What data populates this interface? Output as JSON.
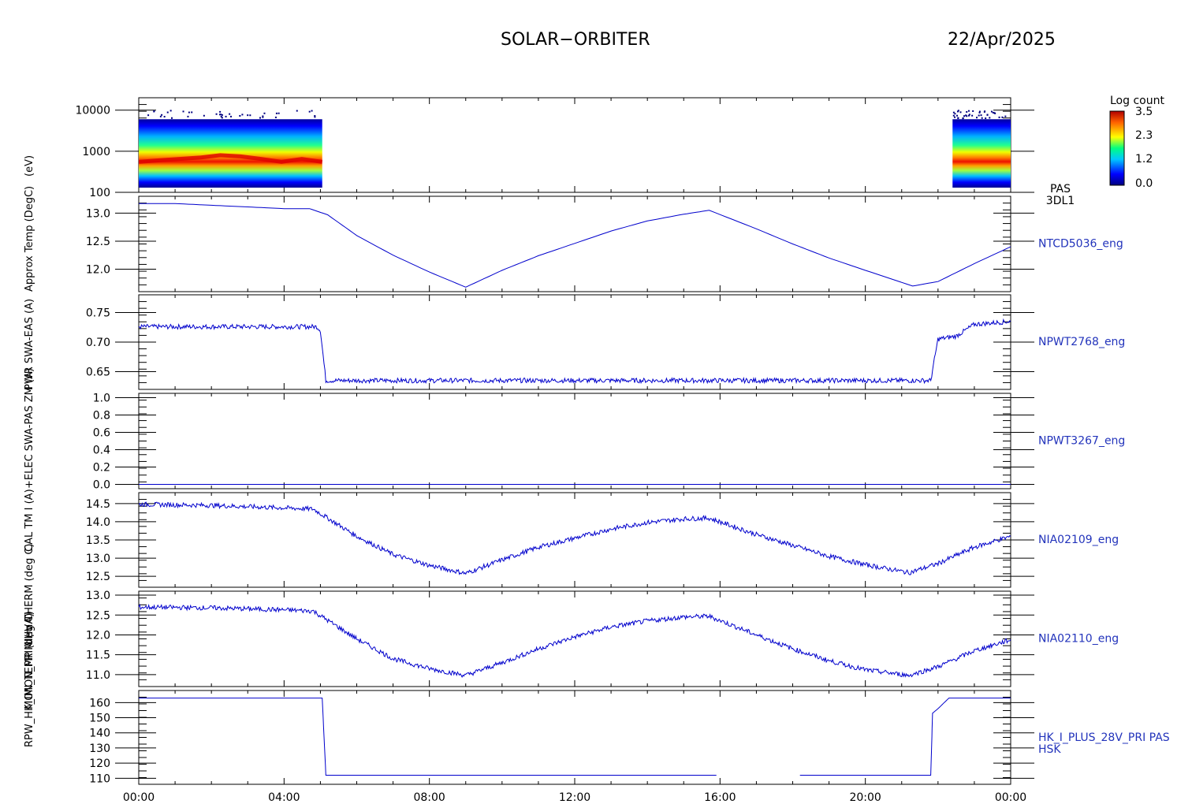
{
  "header": {
    "mission": "SOLAR−ORBITER",
    "date": "22/Apr/2025"
  },
  "colorbar": {
    "title": "Log count",
    "ticks": [
      "3.5",
      "2.3",
      "1.2",
      "0.0"
    ]
  },
  "ylabels": [
    "(eV)",
    "Approx Temp (DegC)",
    "PWR SWA-EAS (A)",
    "+ELEC SWA-PAS ZM (A)",
    "CAL TM I (A)",
    "UHV THERM (deg C)",
    "MON_TEMP (deg C)",
    "RPW_HK_IMON_PRIM (mA)"
  ],
  "colors": {
    "trace": "#0000cc",
    "label": "#2233bb"
  },
  "chart_data": [
    {
      "type": "heatmap",
      "label": "PAS\n3DL1",
      "yscale": "log",
      "ylim": [
        100,
        20000
      ],
      "yticks": [
        "10000",
        "1000",
        "100"
      ],
      "ytick_values": [
        10000,
        1000,
        100
      ],
      "xlim_hours": [
        0,
        24
      ],
      "coverage_hours": [
        [
          0,
          5.05
        ],
        [
          22.4,
          24
        ]
      ],
      "peak_energy_ev": [
        550,
        600,
        650,
        700,
        800,
        750,
        650,
        550,
        650,
        550
      ],
      "colorscale_log_count": [
        0.0,
        3.5
      ]
    },
    {
      "type": "line",
      "label": "NTCD5036_eng",
      "ylim": [
        11.6,
        13.3
      ],
      "yticks": [
        "13.0",
        "12.5",
        "12.0"
      ],
      "ytick_values": [
        13.0,
        12.5,
        12.0
      ],
      "x_hours": [
        0,
        1,
        2,
        3,
        4,
        4.7,
        5.2,
        6,
        7,
        8,
        9.0,
        10,
        11,
        12,
        13,
        14,
        15.0,
        15.7,
        17,
        18,
        19,
        20,
        21.3,
        22,
        23,
        24
      ],
      "y": [
        13.17,
        13.17,
        13.14,
        13.11,
        13.08,
        13.08,
        12.97,
        12.6,
        12.25,
        11.95,
        11.68,
        11.98,
        12.24,
        12.46,
        12.68,
        12.86,
        12.98,
        13.05,
        12.72,
        12.45,
        12.2,
        11.98,
        11.7,
        11.78,
        12.1,
        12.4
      ]
    },
    {
      "type": "line",
      "label": "NPWT2768_eng",
      "ylim": [
        0.62,
        0.78
      ],
      "yticks": [
        "0.75",
        "0.70",
        "0.65"
      ],
      "ytick_values": [
        0.75,
        0.7,
        0.65
      ],
      "x_hours": [
        0,
        4.9,
        5.0,
        5.15,
        21.8,
        22.0,
        22.5,
        23.0,
        24
      ],
      "y": [
        0.726,
        0.726,
        0.72,
        0.635,
        0.635,
        0.705,
        0.71,
        0.73,
        0.735
      ]
    },
    {
      "type": "line",
      "label": "NPWT3267_eng",
      "ylim": [
        -0.05,
        1.05
      ],
      "yticks": [
        "1.0",
        "0.8",
        "0.6",
        "0.4",
        "0.2",
        "0.0"
      ],
      "ytick_values": [
        1.0,
        0.8,
        0.6,
        0.4,
        0.2,
        0.0
      ],
      "x_hours": [
        0,
        24
      ],
      "y": [
        0.0,
        0.0
      ]
    },
    {
      "type": "line",
      "label": "NIA02109_eng",
      "ylim": [
        12.2,
        14.8
      ],
      "yticks": [
        "14.5",
        "14.0",
        "13.5",
        "13.0",
        "12.5"
      ],
      "ytick_values": [
        14.5,
        14.0,
        13.5,
        13.0,
        12.5
      ],
      "x_hours": [
        0,
        2,
        4,
        4.8,
        6,
        7,
        8,
        9.0,
        10,
        11,
        12,
        13,
        14,
        15,
        15.7,
        17,
        18,
        19,
        20,
        21.2,
        22,
        23,
        24
      ],
      "y": [
        14.48,
        14.45,
        14.38,
        14.35,
        13.6,
        13.1,
        12.8,
        12.58,
        12.95,
        13.3,
        13.55,
        13.8,
        13.98,
        14.08,
        14.1,
        13.65,
        13.35,
        13.05,
        12.82,
        12.6,
        12.85,
        13.3,
        13.6
      ]
    },
    {
      "type": "line",
      "label": "NIA02110_eng",
      "ylim": [
        10.7,
        13.1
      ],
      "yticks": [
        "13.0",
        "12.5",
        "12.0",
        "11.5",
        "11.0"
      ],
      "ytick_values": [
        13.0,
        12.5,
        12.0,
        11.5,
        11.0
      ],
      "x_hours": [
        0,
        2,
        4,
        4.8,
        6,
        7,
        8,
        9.0,
        10,
        11,
        12,
        13,
        14,
        15,
        15.7,
        17,
        18,
        19,
        20,
        21.2,
        22,
        23,
        24
      ],
      "y": [
        12.7,
        12.68,
        12.63,
        12.6,
        11.9,
        11.4,
        11.15,
        10.98,
        11.3,
        11.65,
        11.95,
        12.2,
        12.35,
        12.45,
        12.47,
        12.0,
        11.65,
        11.35,
        11.12,
        10.98,
        11.2,
        11.6,
        11.88
      ]
    },
    {
      "type": "line",
      "label": "HK_I_PLUS_28V_PRI PAS\nHSK",
      "ylim": [
        106,
        168
      ],
      "yticks": [
        "160",
        "150",
        "140",
        "130",
        "120",
        "110"
      ],
      "ytick_values": [
        160,
        150,
        140,
        130,
        120,
        110
      ],
      "segments": [
        {
          "x_hours": [
            0,
            5.05,
            5.15,
            15.9
          ],
          "y": [
            163,
            163,
            112,
            112
          ]
        },
        {
          "x_hours": [
            18.2,
            21.8,
            21.85,
            22.0,
            22.3,
            24
          ],
          "y": [
            112,
            112,
            153,
            156,
            163,
            163
          ]
        }
      ]
    }
  ],
  "xaxis": {
    "ticks": [
      "00:00",
      "04:00",
      "08:00",
      "12:00",
      "16:00",
      "20:00",
      "00:00"
    ]
  }
}
